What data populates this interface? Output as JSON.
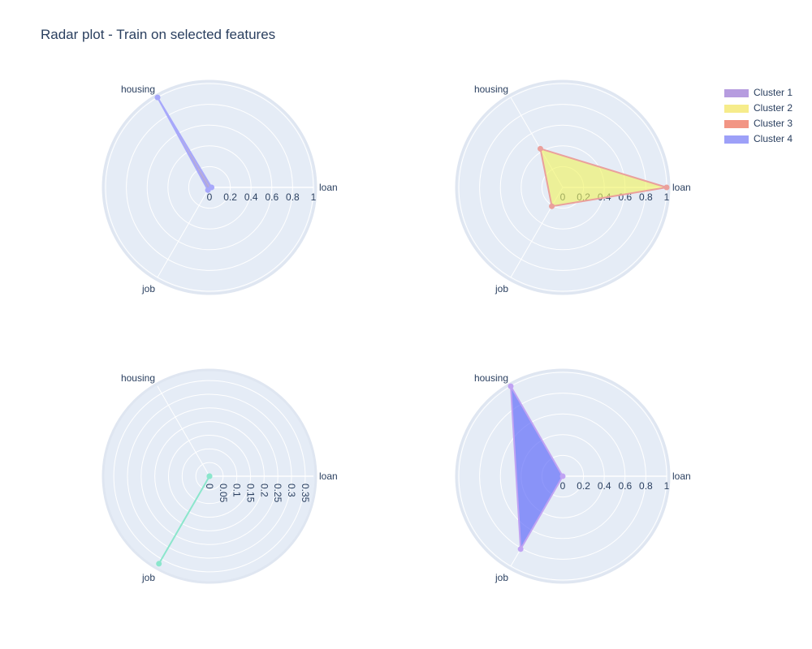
{
  "title": "Radar plot - Train on selected features",
  "chart_data": {
    "type": "radar",
    "title": "Radar plot - Train on selected features",
    "axes": [
      "loan",
      "housing",
      "job"
    ],
    "axis_angles_deg": [
      0,
      120,
      240
    ],
    "legend_position": "top-right",
    "grid": true,
    "series": [
      {
        "name": "Cluster 1",
        "color": "#636efa",
        "values": [
          0.02,
          1.0,
          0.03
        ],
        "subplot": 1
      },
      {
        "name": "Cluster 2",
        "color": "#ef553b",
        "fill": "#f0f35a",
        "values": [
          1.0,
          0.43,
          0.21
        ],
        "subplot": 2
      },
      {
        "name": "Cluster 3",
        "color": "#00cc96",
        "values": [
          0.0,
          0.0,
          0.37
        ],
        "subplot": 3
      },
      {
        "name": "Cluster 4",
        "color": "#636efa",
        "values": [
          0.0,
          1.0,
          0.81
        ],
        "subplot": 4
      }
    ],
    "subplots": [
      {
        "id": 1,
        "radial_range": [
          0,
          1
        ],
        "tick_labels": [
          "0",
          "0.2",
          "0.4",
          "0.6",
          "0.8",
          "1"
        ],
        "tick_values": [
          0,
          0.2,
          0.4,
          0.6,
          0.8,
          1
        ],
        "rotated_ticks": false
      },
      {
        "id": 2,
        "radial_range": [
          0,
          1
        ],
        "tick_labels": [
          "0",
          "0.2",
          "0.4",
          "0.6",
          "0.8",
          "1"
        ],
        "tick_values": [
          0,
          0.2,
          0.4,
          0.6,
          0.8,
          1
        ],
        "rotated_ticks": false
      },
      {
        "id": 3,
        "radial_range": [
          0,
          0.38
        ],
        "tick_labels": [
          "0",
          "0.05",
          "0.1",
          "0.15",
          "0.2",
          "0.25",
          "0.3",
          "0.35"
        ],
        "tick_values": [
          0,
          0.05,
          0.1,
          0.15,
          0.2,
          0.25,
          0.3,
          0.35
        ],
        "rotated_ticks": true
      },
      {
        "id": 4,
        "radial_range": [
          0,
          1
        ],
        "tick_labels": [
          "0",
          "0.2",
          "0.4",
          "0.6",
          "0.8",
          "1"
        ],
        "tick_values": [
          0,
          0.2,
          0.4,
          0.6,
          0.8,
          1
        ],
        "rotated_ticks": false
      }
    ]
  },
  "legend": {
    "items": [
      {
        "label": "Cluster 1",
        "color": "#a98bd9"
      },
      {
        "label": "Cluster 2",
        "color": "#f5e977"
      },
      {
        "label": "Cluster 3",
        "color": "#f0826e"
      },
      {
        "label": "Cluster 4",
        "color": "#8c8ff7"
      }
    ]
  }
}
